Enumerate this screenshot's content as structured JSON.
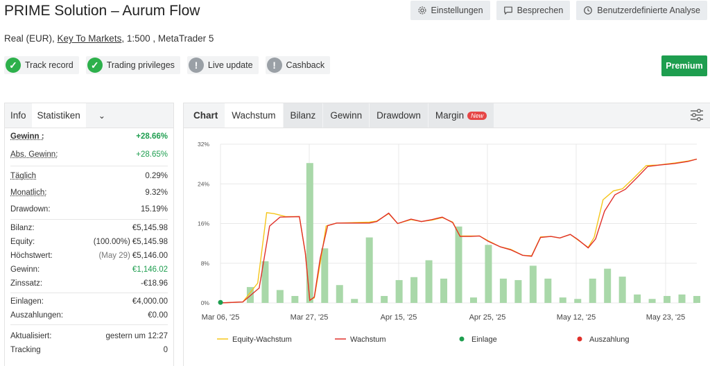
{
  "header": {
    "title": "PRIME Solution – Aurum Flow",
    "actions": [
      {
        "label": "Einstellungen",
        "icon": "gear-icon"
      },
      {
        "label": "Besprechen",
        "icon": "comment-icon"
      },
      {
        "label": "Benutzerdefinierte Analyse",
        "icon": "clock-icon"
      }
    ],
    "account_type": "Real (EUR),",
    "broker": "Key To Markets",
    "account_rest": ", 1:500 , MetaTrader 5"
  },
  "badges": [
    {
      "label": "Track record",
      "status": "ok"
    },
    {
      "label": "Trading privileges",
      "status": "ok"
    },
    {
      "label": "Live update",
      "status": "warn"
    },
    {
      "label": "Cashback",
      "status": "warn"
    }
  ],
  "premium_label": "Premium",
  "info_tabs": {
    "info": "Info",
    "stats": "Statistiken"
  },
  "stats": {
    "gain": {
      "label": "Gewinn :",
      "value": "+28.66%"
    },
    "abs_gain": {
      "label": "Abs. Gewinn:",
      "value": "+28.65%"
    },
    "daily": {
      "label": "Täglich",
      "value": "0.29%"
    },
    "monthly": {
      "label": "Monatlich:",
      "value": "9.32%"
    },
    "drawdown": {
      "label": "Drawdown:",
      "value": "15.19%"
    },
    "balance": {
      "label": "Bilanz:",
      "value": "€5,145.98"
    },
    "equity": {
      "label": "Equity:",
      "pct": "(100.00%)",
      "value": "€5,145.98"
    },
    "highest": {
      "label": "Höchstwert:",
      "date": "(May 29)",
      "value": "€5,146.00"
    },
    "profit": {
      "label": "Gewinn:",
      "value": "€1,146.02"
    },
    "interest": {
      "label": "Zinssatz:",
      "value": "-€18.96"
    },
    "deposits": {
      "label": "Einlagen:",
      "value": "€4,000.00"
    },
    "withdrawals": {
      "label": "Auszahlungen:",
      "value": "€0.00"
    },
    "updated": {
      "label": "Aktualisiert:",
      "value": "gestern um 12:27"
    },
    "tracking": {
      "label": "Tracking",
      "value": "0"
    }
  },
  "chart_tabs": {
    "label": "Chart",
    "tabs": [
      "Wachstum",
      "Bilanz",
      "Gewinn",
      "Drawdown",
      "Margin"
    ],
    "new_badge": "New"
  },
  "chart_data": {
    "type": "line",
    "yticks": [
      "32%",
      "24%",
      "16%",
      "8%",
      "0%"
    ],
    "ylim": [
      0,
      32
    ],
    "xticks": [
      "Mar 06, '25",
      "Mar 27, '25",
      "Apr 15, '25",
      "Apr 25, '25",
      "May 12, '25",
      "May 23, '25"
    ],
    "xlim": [
      0,
      32
    ],
    "bars": [
      {
        "x": 2,
        "v": 3.2
      },
      {
        "x": 3,
        "v": 8.4
      },
      {
        "x": 4,
        "v": 2.6
      },
      {
        "x": 5,
        "v": 1.4
      },
      {
        "x": 6,
        "v": 28.2
      },
      {
        "x": 7,
        "v": 11.0
      },
      {
        "x": 8,
        "v": 3.6
      },
      {
        "x": 9,
        "v": 0.8
      },
      {
        "x": 10,
        "v": 13.2
      },
      {
        "x": 11,
        "v": 1.4
      },
      {
        "x": 12,
        "v": 4.6
      },
      {
        "x": 13,
        "v": 5.2
      },
      {
        "x": 14,
        "v": 8.6
      },
      {
        "x": 15,
        "v": 4.9
      },
      {
        "x": 16,
        "v": 15.4
      },
      {
        "x": 17,
        "v": 1.1
      },
      {
        "x": 18,
        "v": 11.7
      },
      {
        "x": 19,
        "v": 4.9
      },
      {
        "x": 20,
        "v": 4.6
      },
      {
        "x": 21,
        "v": 7.5
      },
      {
        "x": 22,
        "v": 4.9
      },
      {
        "x": 23,
        "v": 1.1
      },
      {
        "x": 24,
        "v": 0.8
      },
      {
        "x": 25,
        "v": 4.9
      },
      {
        "x": 26,
        "v": 6.9
      },
      {
        "x": 27,
        "v": 5.3
      },
      {
        "x": 28,
        "v": 1.7
      },
      {
        "x": 29,
        "v": 0.8
      },
      {
        "x": 30,
        "v": 1.4
      },
      {
        "x": 31,
        "v": 1.7
      },
      {
        "x": 32,
        "v": 1.4
      }
    ],
    "series": [
      {
        "name": "Equity-Wachstum",
        "color": "#f5c518",
        "points": [
          [
            0,
            0
          ],
          [
            1.5,
            0.2
          ],
          [
            2.5,
            4
          ],
          [
            3.1,
            18.2
          ],
          [
            3.6,
            18.0
          ],
          [
            4.4,
            17.4
          ],
          [
            5.3,
            17.4
          ],
          [
            5.7,
            10
          ],
          [
            6.0,
            0.6
          ],
          [
            6.3,
            1.0
          ],
          [
            6.7,
            8
          ],
          [
            7.1,
            15.5
          ],
          [
            7.8,
            16.1
          ],
          [
            9.0,
            16.2
          ],
          [
            10.0,
            16.3
          ],
          [
            10.5,
            16.5
          ],
          [
            11.3,
            18.0
          ],
          [
            11.9,
            16.0
          ],
          [
            12.8,
            16.8
          ],
          [
            13.5,
            16.4
          ],
          [
            14.2,
            16.7
          ],
          [
            14.9,
            17.2
          ],
          [
            15.6,
            16.3
          ],
          [
            16.1,
            13.5
          ],
          [
            16.8,
            13.5
          ],
          [
            17.4,
            13.5
          ],
          [
            18.0,
            12.5
          ],
          [
            18.8,
            11.3
          ],
          [
            19.5,
            10.8
          ],
          [
            20.3,
            9.6
          ],
          [
            20.9,
            9.5
          ],
          [
            21.5,
            13.3
          ],
          [
            22.2,
            13.4
          ],
          [
            22.8,
            13.1
          ],
          [
            23.5,
            13.8
          ],
          [
            24.0,
            12.7
          ],
          [
            24.7,
            11.2
          ],
          [
            25.1,
            13.2
          ],
          [
            25.7,
            20.8
          ],
          [
            26.4,
            22.6
          ],
          [
            27.0,
            23.0
          ],
          [
            27.7,
            25.0
          ],
          [
            28.6,
            27.7
          ],
          [
            29.4,
            27.8
          ],
          [
            30.5,
            28.2
          ],
          [
            31.4,
            28.6
          ],
          [
            32,
            29.0
          ]
        ]
      },
      {
        "name": "Wachstum",
        "color": "#e0302a",
        "points": [
          [
            0,
            0
          ],
          [
            1.5,
            0.2
          ],
          [
            2.6,
            3
          ],
          [
            3.3,
            15.5
          ],
          [
            4.0,
            17.3
          ],
          [
            5.3,
            17.4
          ],
          [
            5.7,
            10
          ],
          [
            6.0,
            0.5
          ],
          [
            6.3,
            1.2
          ],
          [
            6.7,
            9
          ],
          [
            7.2,
            15.6
          ],
          [
            7.8,
            16.1
          ],
          [
            9.0,
            16.1
          ],
          [
            10.0,
            16.1
          ],
          [
            10.5,
            16.4
          ],
          [
            11.3,
            18.1
          ],
          [
            11.9,
            16.0
          ],
          [
            12.8,
            16.9
          ],
          [
            13.5,
            16.4
          ],
          [
            14.2,
            16.8
          ],
          [
            14.9,
            17.3
          ],
          [
            15.6,
            16.2
          ],
          [
            16.1,
            13.4
          ],
          [
            16.8,
            13.4
          ],
          [
            17.4,
            13.5
          ],
          [
            18.0,
            12.4
          ],
          [
            18.8,
            11.3
          ],
          [
            19.5,
            10.7
          ],
          [
            20.3,
            9.6
          ],
          [
            20.9,
            9.4
          ],
          [
            21.5,
            13.2
          ],
          [
            22.2,
            13.4
          ],
          [
            22.8,
            13.1
          ],
          [
            23.5,
            13.8
          ],
          [
            24.0,
            12.8
          ],
          [
            24.7,
            11.1
          ],
          [
            25.2,
            12.9
          ],
          [
            25.8,
            18.5
          ],
          [
            26.5,
            21.8
          ],
          [
            27.2,
            22.9
          ],
          [
            28.0,
            25.3
          ],
          [
            28.7,
            27.5
          ],
          [
            29.5,
            27.8
          ],
          [
            30.5,
            28.1
          ],
          [
            31.4,
            28.5
          ],
          [
            32,
            29.0
          ]
        ]
      }
    ],
    "deposit_points": [
      [
        0,
        0.1
      ]
    ],
    "legend": [
      {
        "label": "Equity-Wachstum",
        "type": "line",
        "color": "#f5c518"
      },
      {
        "label": "Wachstum",
        "type": "line",
        "color": "#e0302a"
      },
      {
        "label": "Einlage",
        "type": "dot",
        "color": "#1e9e4f"
      },
      {
        "label": "Auszahlung",
        "type": "dot",
        "color": "#e0302a"
      }
    ],
    "bar_color": "#a9d8a9"
  }
}
